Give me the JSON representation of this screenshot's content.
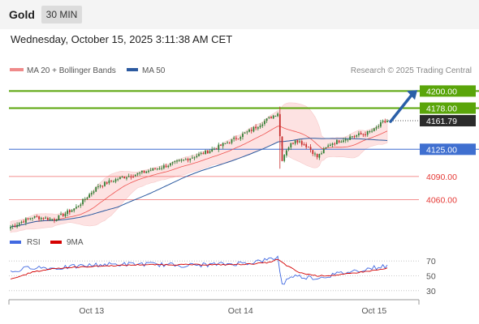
{
  "header": {
    "symbol": "Gold",
    "timeframe": "30 MIN",
    "datetime": "Wednesday, October 15, 2025 3:11:38 AM CET"
  },
  "legend": {
    "ma20": "MA 20 + Bollinger Bands",
    "ma50": "MA 50",
    "credit": "Research © 2025 Trading Central",
    "rsi": "RSI",
    "rsi_ma": "9MA"
  },
  "colors": {
    "bull": "#2e7d32",
    "bear": "#c62828",
    "ma20": "#ef5350",
    "ma50": "#2c5aa0",
    "band_fill": "#fde2e2",
    "resistance": "#5aa50a",
    "support": "#3f6fd0",
    "target": "#e53935",
    "rsi": "#4169e1",
    "rsi_ma": "#d50000",
    "arrow": "#2a5fa8"
  },
  "chart_data": [
    {
      "type": "candlestick",
      "x_ticks": [
        "Oct 13",
        "Oct 14",
        "Oct 15"
      ],
      "y_range": [
        4020,
        4215
      ],
      "last_price": 4161.79,
      "last_price_label": "4161.79",
      "levels": [
        {
          "value": 4200.0,
          "label": "4200.00",
          "kind": "resistance"
        },
        {
          "value": 4178.0,
          "label": "4178.00",
          "kind": "resistance"
        },
        {
          "value": 4125.0,
          "label": "4125.00",
          "kind": "pivot"
        },
        {
          "value": 4090.0,
          "label": "4090.00",
          "kind": "support"
        },
        {
          "value": 4060.0,
          "label": "4060.00",
          "kind": "support"
        }
      ],
      "anchors": [
        [
          0,
          4025
        ],
        [
          10,
          4038
        ],
        [
          20,
          4035
        ],
        [
          30,
          4050
        ],
        [
          40,
          4078
        ],
        [
          50,
          4088
        ],
        [
          60,
          4095
        ],
        [
          70,
          4103
        ],
        [
          80,
          4112
        ],
        [
          90,
          4122
        ],
        [
          100,
          4135
        ],
        [
          110,
          4150
        ],
        [
          118,
          4165
        ],
        [
          122,
          4172
        ],
        [
          124,
          4112
        ],
        [
          126,
          4125
        ],
        [
          130,
          4138
        ],
        [
          136,
          4128
        ],
        [
          140,
          4115
        ],
        [
          146,
          4132
        ],
        [
          156,
          4142
        ],
        [
          162,
          4145
        ],
        [
          166,
          4150
        ],
        [
          170,
          4160
        ]
      ],
      "forecast": "upward arrow from 4162 toward 4200.00"
    },
    {
      "type": "line",
      "title": "RSI",
      "y_ticks": [
        70,
        50,
        30
      ],
      "y_range": [
        20,
        80
      ],
      "series": [
        {
          "name": "RSI",
          "anchors": [
            [
              0,
              55
            ],
            [
              10,
              62
            ],
            [
              20,
              60
            ],
            [
              40,
              65
            ],
            [
              60,
              66
            ],
            [
              80,
              64
            ],
            [
              100,
              66
            ],
            [
              110,
              68
            ],
            [
              118,
              72
            ],
            [
              122,
              75
            ],
            [
              124,
              38
            ],
            [
              128,
              50
            ],
            [
              140,
              47
            ],
            [
              150,
              53
            ],
            [
              160,
              58
            ],
            [
              168,
              62
            ],
            [
              172,
              63
            ]
          ]
        },
        {
          "name": "9MA",
          "anchors": [
            [
              0,
              45
            ],
            [
              10,
              55
            ],
            [
              20,
              60
            ],
            [
              40,
              63
            ],
            [
              60,
              65
            ],
            [
              80,
              65
            ],
            [
              100,
              65
            ],
            [
              110,
              66
            ],
            [
              118,
              68
            ],
            [
              122,
              72
            ],
            [
              126,
              64
            ],
            [
              132,
              54
            ],
            [
              140,
              50
            ],
            [
              150,
              51
            ],
            [
              160,
              55
            ],
            [
              168,
              58
            ],
            [
              172,
              60
            ]
          ]
        }
      ]
    }
  ]
}
